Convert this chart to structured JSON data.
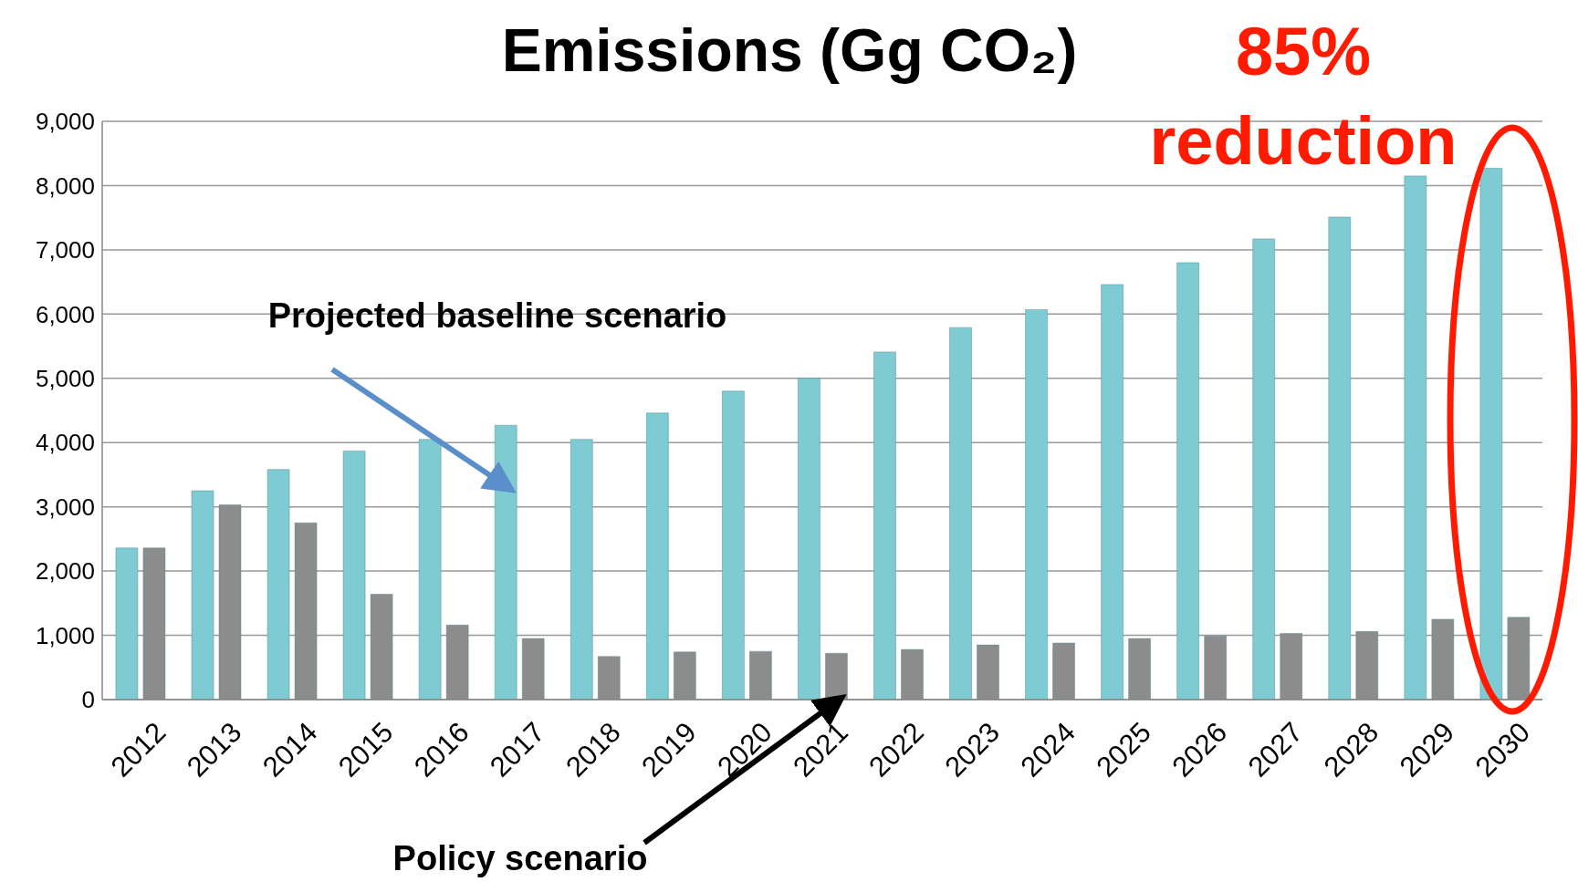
{
  "chart_data": {
    "type": "bar",
    "title": "Emissions  (Gg CO₂)",
    "categories": [
      "2012",
      "2013",
      "2014",
      "2015",
      "2016",
      "2017",
      "2018",
      "2019",
      "2020",
      "2021",
      "2022",
      "2023",
      "2024",
      "2025",
      "2026",
      "2027",
      "2028",
      "2029",
      "2030"
    ],
    "series": [
      {
        "color": "#7ecbd3",
        "values": [
          2360,
          3250,
          3580,
          3870,
          4050,
          4270,
          4050,
          4460,
          4800,
          5000,
          5410,
          5790,
          6070,
          6460,
          6800,
          7170,
          7510,
          8150,
          8270
        ]
      },
      {
        "color": "#8c8c8c",
        "values": [
          2360,
          3030,
          2750,
          1640,
          1160,
          950,
          670,
          740,
          750,
          720,
          780,
          850,
          880,
          950,
          990,
          1030,
          1060,
          1250,
          1280
        ]
      }
    ],
    "ylim": [
      0,
      9000
    ],
    "yticks": [
      0,
      {
        "value": 1000,
        "label": "1,000"
      },
      {
        "value": 2000,
        "label": "2,000"
      },
      {
        "value": 3000,
        "label": "3,000"
      },
      {
        "value": 4000,
        "label": "4,000"
      },
      {
        "value": 5000,
        "label": "5,000"
      },
      {
        "value": 6000,
        "label": "6,000"
      },
      {
        "value": 7000,
        "label": "7,000"
      },
      {
        "value": 8000,
        "label": "8,000"
      },
      {
        "value": 9000,
        "label": "9,000"
      }
    ],
    "grid": "y",
    "legend": false,
    "annotations": [
      "Projected baseline scenario",
      "Policy scenario",
      "85% reduction"
    ]
  }
}
